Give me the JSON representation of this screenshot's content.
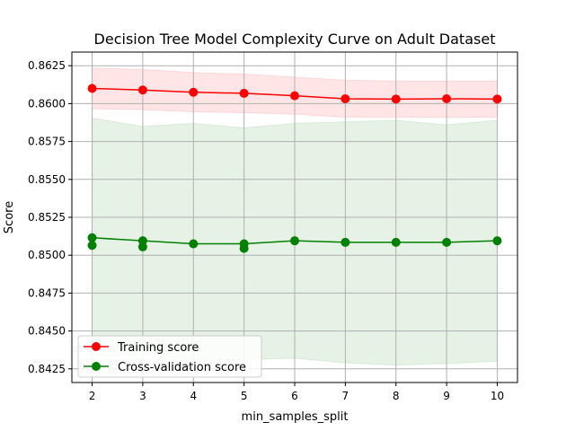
{
  "chart_data": {
    "type": "line",
    "title": "Decision Tree Model Complexity Curve on Adult Dataset",
    "xlabel": "min_samples_split",
    "ylabel": "Score",
    "xlim": [
      1.6,
      10.4
    ],
    "ylim": [
      0.8416,
      0.8634
    ],
    "xticks": [
      2,
      3,
      4,
      5,
      6,
      7,
      8,
      9,
      10
    ],
    "xtick_labels": [
      "2",
      "3",
      "4",
      "5",
      "6",
      "7",
      "8",
      "9",
      "10"
    ],
    "yticks": [
      0.8425,
      0.845,
      0.8475,
      0.85,
      0.8525,
      0.855,
      0.8575,
      0.86,
      0.8625
    ],
    "ytick_labels": [
      "0.8425",
      "0.8450",
      "0.8475",
      "0.8500",
      "0.8525",
      "0.8550",
      "0.8575",
      "0.8600",
      "0.8625"
    ],
    "grid": true,
    "legend_position": "lower-left",
    "x": [
      2,
      3,
      4,
      5,
      6,
      7,
      8,
      9,
      10
    ],
    "series": [
      {
        "name": "Training score",
        "color": "#ff0000",
        "band_color": "#ff0000",
        "values": [
          0.861,
          0.8609,
          0.86075,
          0.86068,
          0.86052,
          0.86032,
          0.8603,
          0.86032,
          0.8603
        ],
        "upper": [
          0.86235,
          0.86225,
          0.86205,
          0.86195,
          0.86175,
          0.86155,
          0.8615,
          0.8615,
          0.8615
        ],
        "lower": [
          0.85965,
          0.8596,
          0.85945,
          0.8594,
          0.8593,
          0.8591,
          0.8591,
          0.8591,
          0.8591
        ]
      },
      {
        "name": "Cross-validation score",
        "color": "#008000",
        "band_color": "#008000",
        "values": [
          0.85115,
          0.85095,
          0.85075,
          0.85075,
          0.85095,
          0.85085,
          0.85085,
          0.85085,
          0.85095
        ],
        "upper": [
          0.85905,
          0.8585,
          0.8587,
          0.8584,
          0.8587,
          0.8588,
          0.8589,
          0.8586,
          0.8589
        ],
        "lower": [
          0.8433,
          0.84345,
          0.8431,
          0.8431,
          0.8432,
          0.8429,
          0.84275,
          0.84285,
          0.843
        ],
        "extra_points": {
          "x": [
            2,
            3,
            5
          ],
          "values": [
            0.85065,
            0.85055,
            0.85045
          ]
        }
      }
    ]
  }
}
